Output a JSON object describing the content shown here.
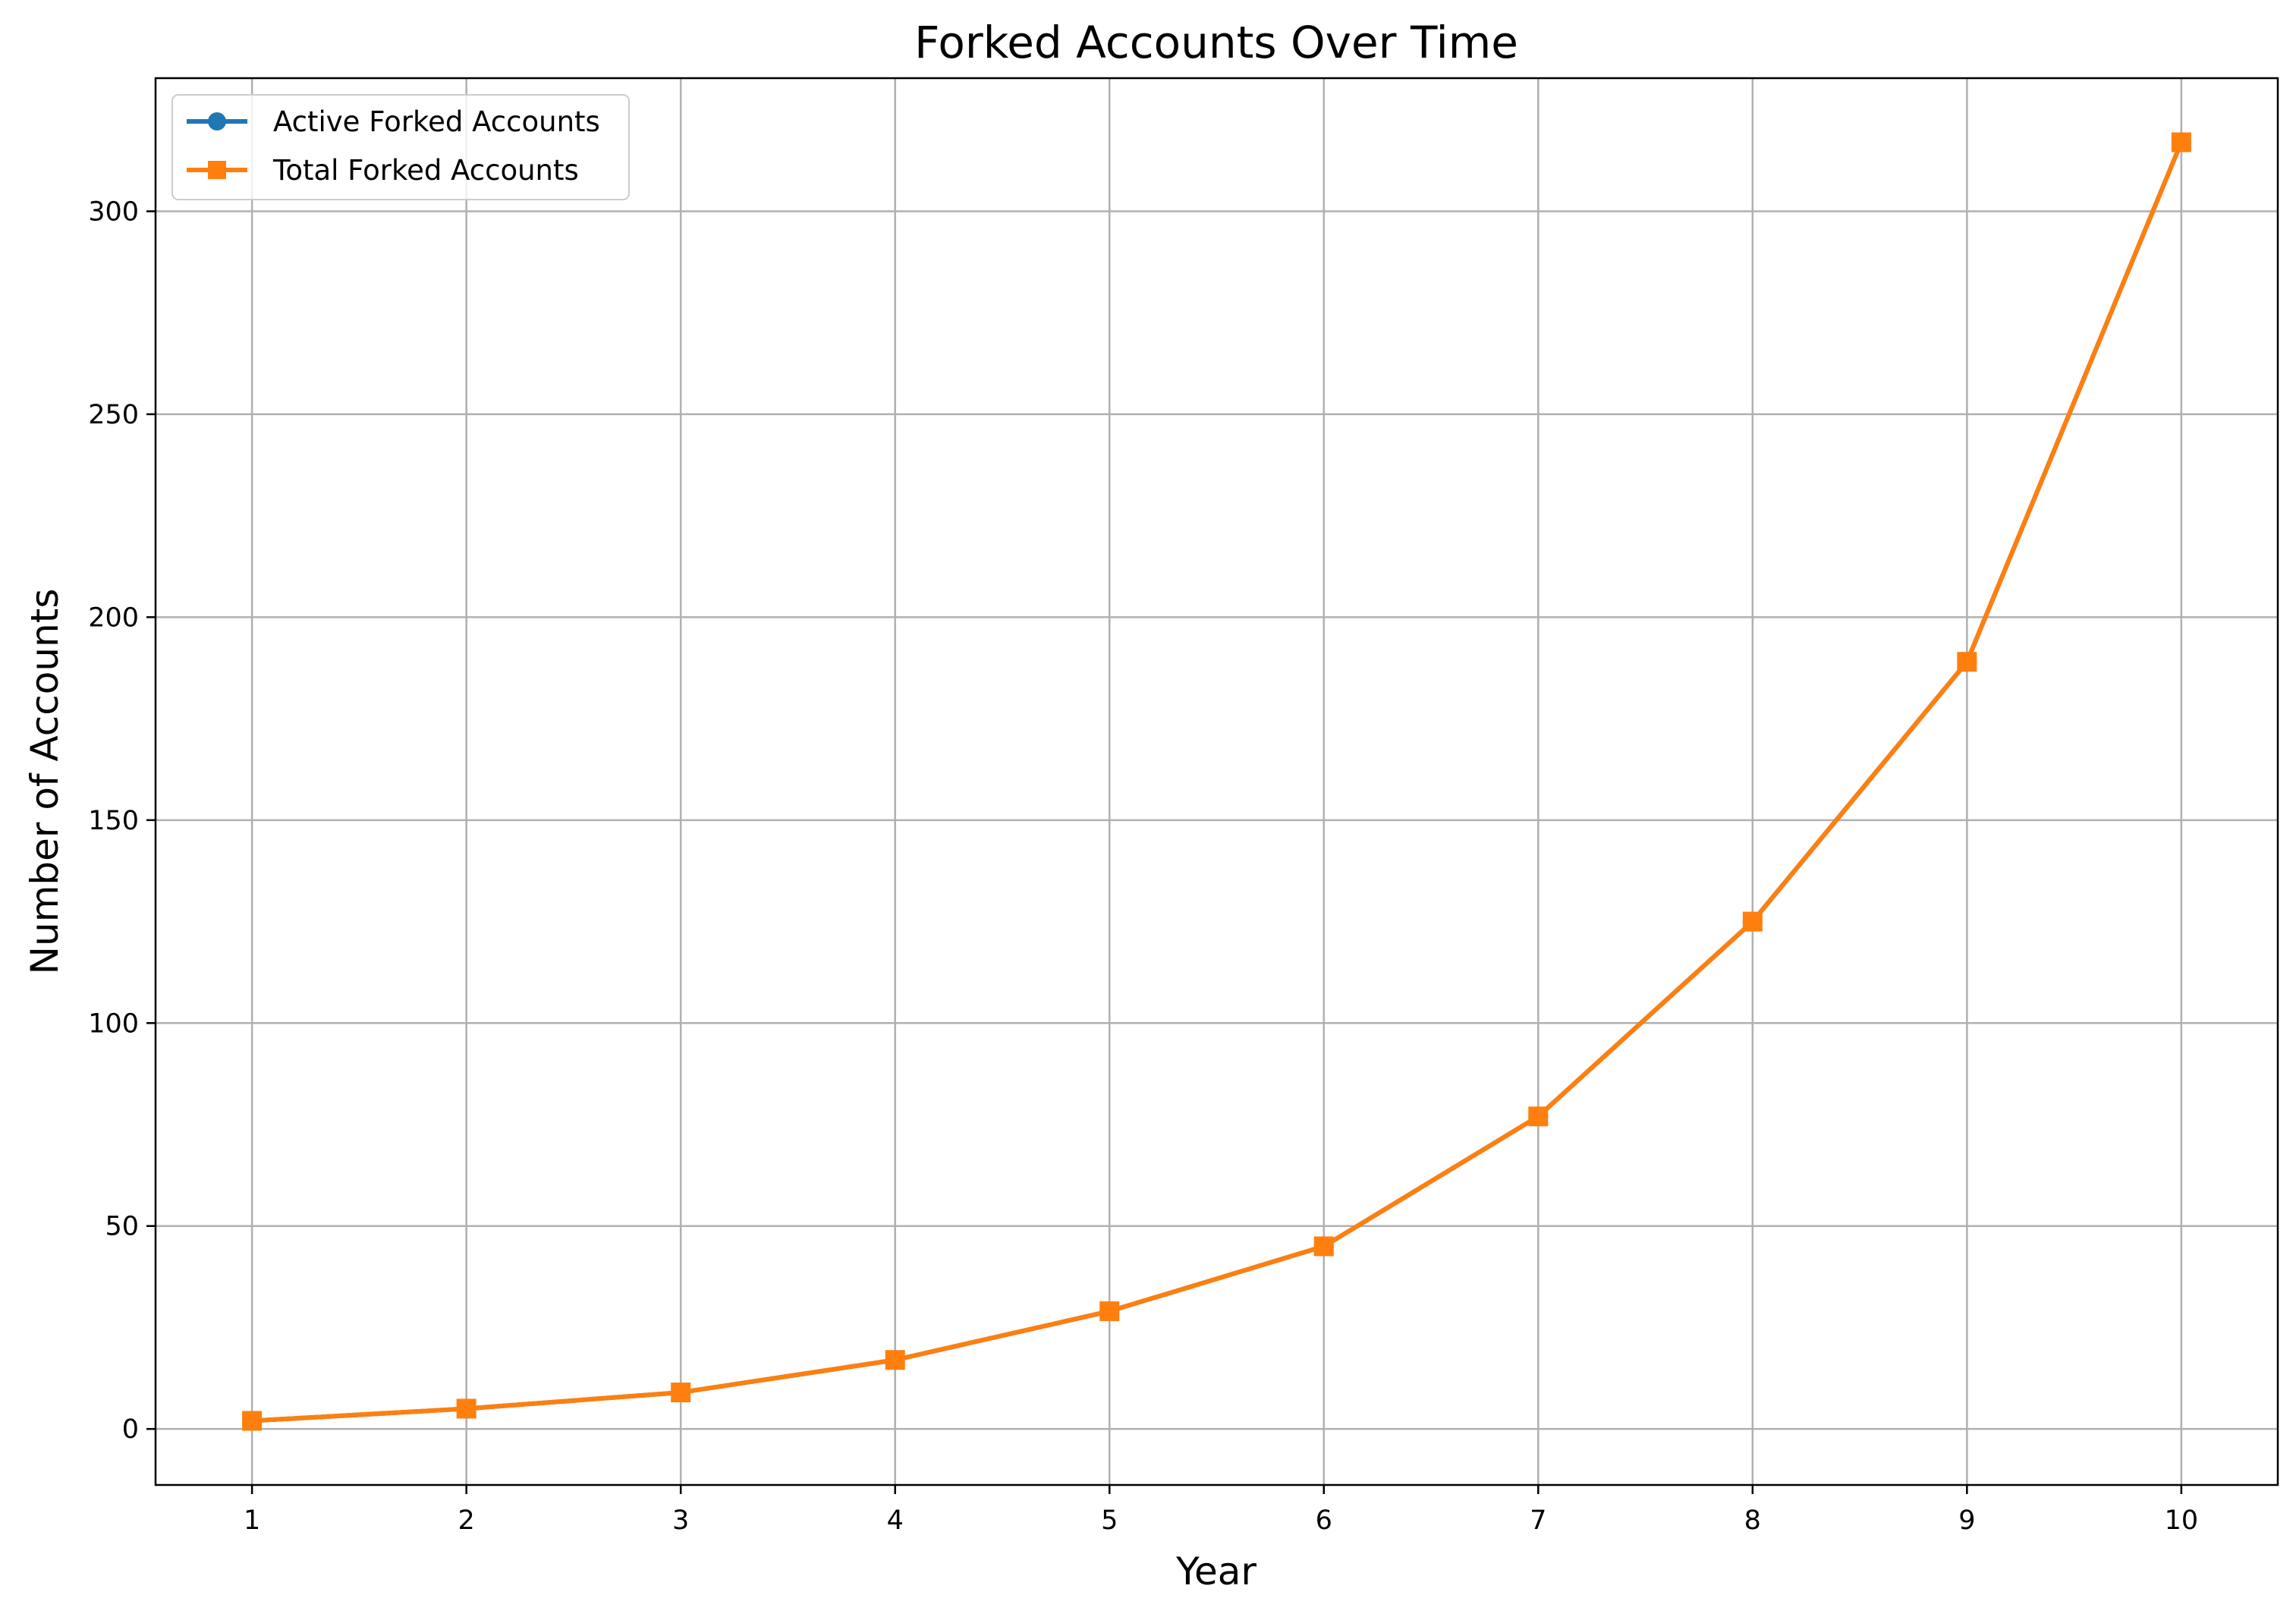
{
  "chart_data": {
    "type": "line",
    "title": "Forked Accounts Over Time",
    "xlabel": "Year",
    "ylabel": "Number of Accounts",
    "x": [
      1,
      2,
      3,
      4,
      5,
      6,
      7,
      8,
      9,
      10
    ],
    "xlim": [
      0.55,
      10.45
    ],
    "ylim": [
      -13.8,
      332.8
    ],
    "xticks": [
      1,
      2,
      3,
      4,
      5,
      6,
      7,
      8,
      9,
      10
    ],
    "yticks": [
      0,
      50,
      100,
      150,
      200,
      250,
      300
    ],
    "grid": true,
    "legend_position": "upper-left",
    "series": [
      {
        "name": "Active Forked Accounts",
        "color": "#1f77b4",
        "marker": "circle",
        "values": [
          2,
          5,
          9,
          17,
          29,
          45,
          77,
          125,
          189,
          317
        ]
      },
      {
        "name": "Total Forked Accounts",
        "color": "#ff7f0e",
        "marker": "square",
        "values": [
          2,
          5,
          9,
          17,
          29,
          45,
          77,
          125,
          189,
          317
        ]
      }
    ]
  }
}
